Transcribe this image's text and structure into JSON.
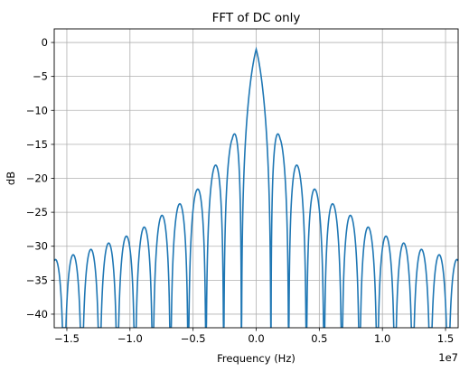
{
  "chart_data": {
    "type": "line",
    "title": "FFT of DC only",
    "xlabel": "Frequency (Hz)",
    "ylabel": "dB",
    "x_offset_label": "1e7",
    "xlim": [
      -16000000.0,
      16000000.0
    ],
    "ylim": [
      -42,
      2
    ],
    "grid": true,
    "line_color": "#1f77b4",
    "x_ticks": [
      {
        "value": -15000000.0,
        "label": "−1.5"
      },
      {
        "value": -10000000.0,
        "label": "−1.0"
      },
      {
        "value": -5000000.0,
        "label": "−0.5"
      },
      {
        "value": 0,
        "label": "0.0"
      },
      {
        "value": 5000000.0,
        "label": "0.5"
      },
      {
        "value": 10000000.0,
        "label": "1.0"
      },
      {
        "value": 15000000.0,
        "label": "1.5"
      }
    ],
    "y_ticks": [
      {
        "value": 0,
        "label": "0"
      },
      {
        "value": -5,
        "label": "−5"
      },
      {
        "value": -10,
        "label": "−10"
      },
      {
        "value": -15,
        "label": "−15"
      },
      {
        "value": -20,
        "label": "−20"
      },
      {
        "value": -25,
        "label": "−25"
      },
      {
        "value": -30,
        "label": "−30"
      },
      {
        "value": -35,
        "label": "−35"
      },
      {
        "value": -40,
        "label": "−40"
      }
    ],
    "series": [
      {
        "peak_db": -1.0,
        "null_spacing_hz": 1170000.0,
        "x_range_hz": [
          -16000000.0,
          16000000.0
        ],
        "sidelobe_peaks_hz_db": [
          [
            0,
            -1.0
          ],
          [
            1900000.0,
            -14.2
          ],
          [
            3500000.0,
            -18.8
          ],
          [
            4700000.0,
            -21.7
          ],
          [
            6100000.0,
            -23.8
          ],
          [
            7600000.0,
            -25.6
          ],
          [
            8800000.0,
            -27.1
          ],
          [
            10000000.0,
            -28.3
          ],
          [
            11500000.0,
            -29.4
          ],
          [
            13000000.0,
            -30.4
          ],
          [
            14400000.0,
            -31.2
          ],
          [
            16000000.0,
            -32.0
          ]
        ]
      }
    ]
  }
}
